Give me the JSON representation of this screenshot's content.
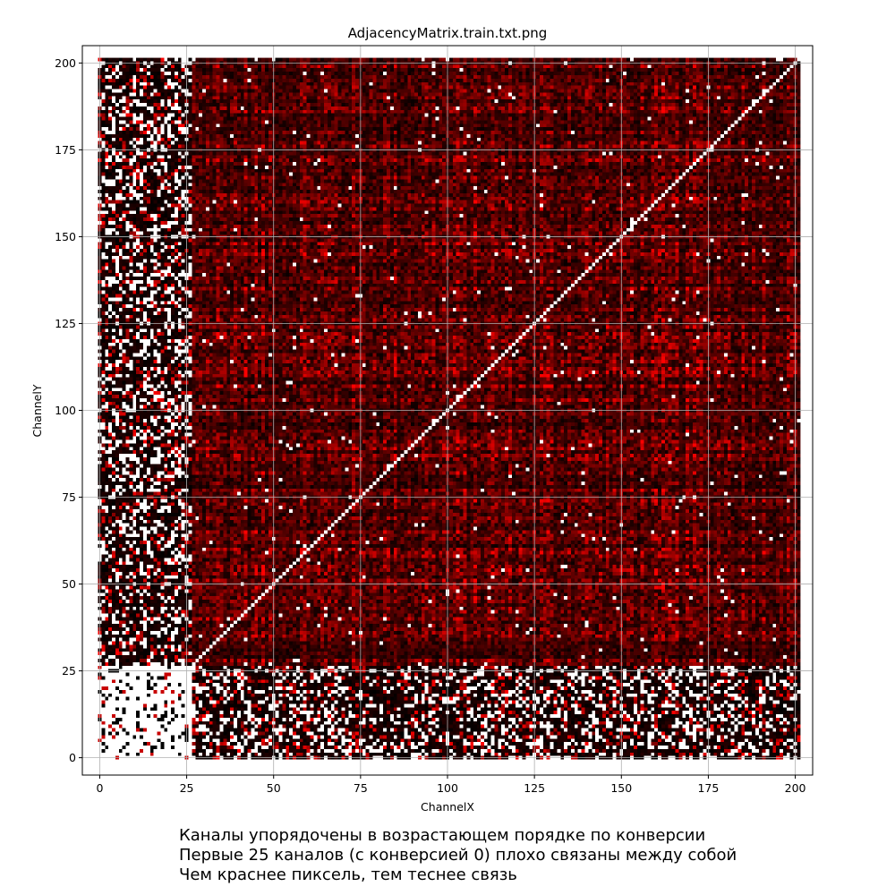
{
  "chart_data": {
    "type": "heatmap",
    "title": "AdjacencyMatrix.train.txt.png",
    "xlabel": "ChannelX",
    "ylabel": "ChannelY",
    "xlim": [
      -5,
      205
    ],
    "ylim": [
      -5,
      205
    ],
    "x_ticks": [
      0,
      25,
      50,
      75,
      100,
      125,
      150,
      175,
      200
    ],
    "y_ticks": [
      0,
      25,
      50,
      75,
      100,
      125,
      150,
      175,
      200
    ],
    "grid": true,
    "matrix_size": 202,
    "colormap": [
      "#000000",
      "#ff0000",
      "#ffffff"
    ],
    "diagonal_color": "#ffffff",
    "weak_channel_count": 25
  },
  "caption": {
    "lines": [
      "Каналы упорядочены в возрастающем порядке по конверсии",
      "Первые 25 каналов (с конверсией 0) плохо связаны между собой",
      "Чем краснее пиксель, тем теснее связь"
    ]
  }
}
